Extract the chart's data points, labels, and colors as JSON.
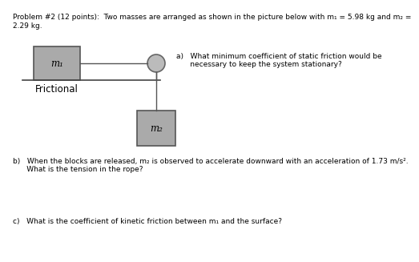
{
  "background_color": "#ffffff",
  "title_line1": "Problem #2 (12 points):  Two masses are arranged as shown in the picture below with m₁ = 5.98 kg and m₂ =",
  "title_line2": "2.29 kg.",
  "question_a_line1": "a)   What minimum coefficient of static friction would be",
  "question_a_line2": "      necessary to keep the system stationary?",
  "question_b_line1": "b)   When the blocks are released, m₂ is observed to accelerate downward with an acceleration of 1.73 m/s².",
  "question_b_line2": "      What is the tension in the rope?",
  "question_c": "c)   What is the coefficient of kinetic friction between m₁ and the surface?",
  "label_frictional": "Frictional",
  "label_m1": "m₁",
  "label_m2": "m₂",
  "box_color": "#aaaaaa",
  "box_edge_color": "#555555",
  "pulley_color": "#bbbbbb",
  "pulley_edge_color": "#666666",
  "rope_color": "#555555",
  "surface_color": "#444444",
  "font_size_main": 6.5,
  "font_size_label": 8.5,
  "font_size_frictional": 8.5
}
